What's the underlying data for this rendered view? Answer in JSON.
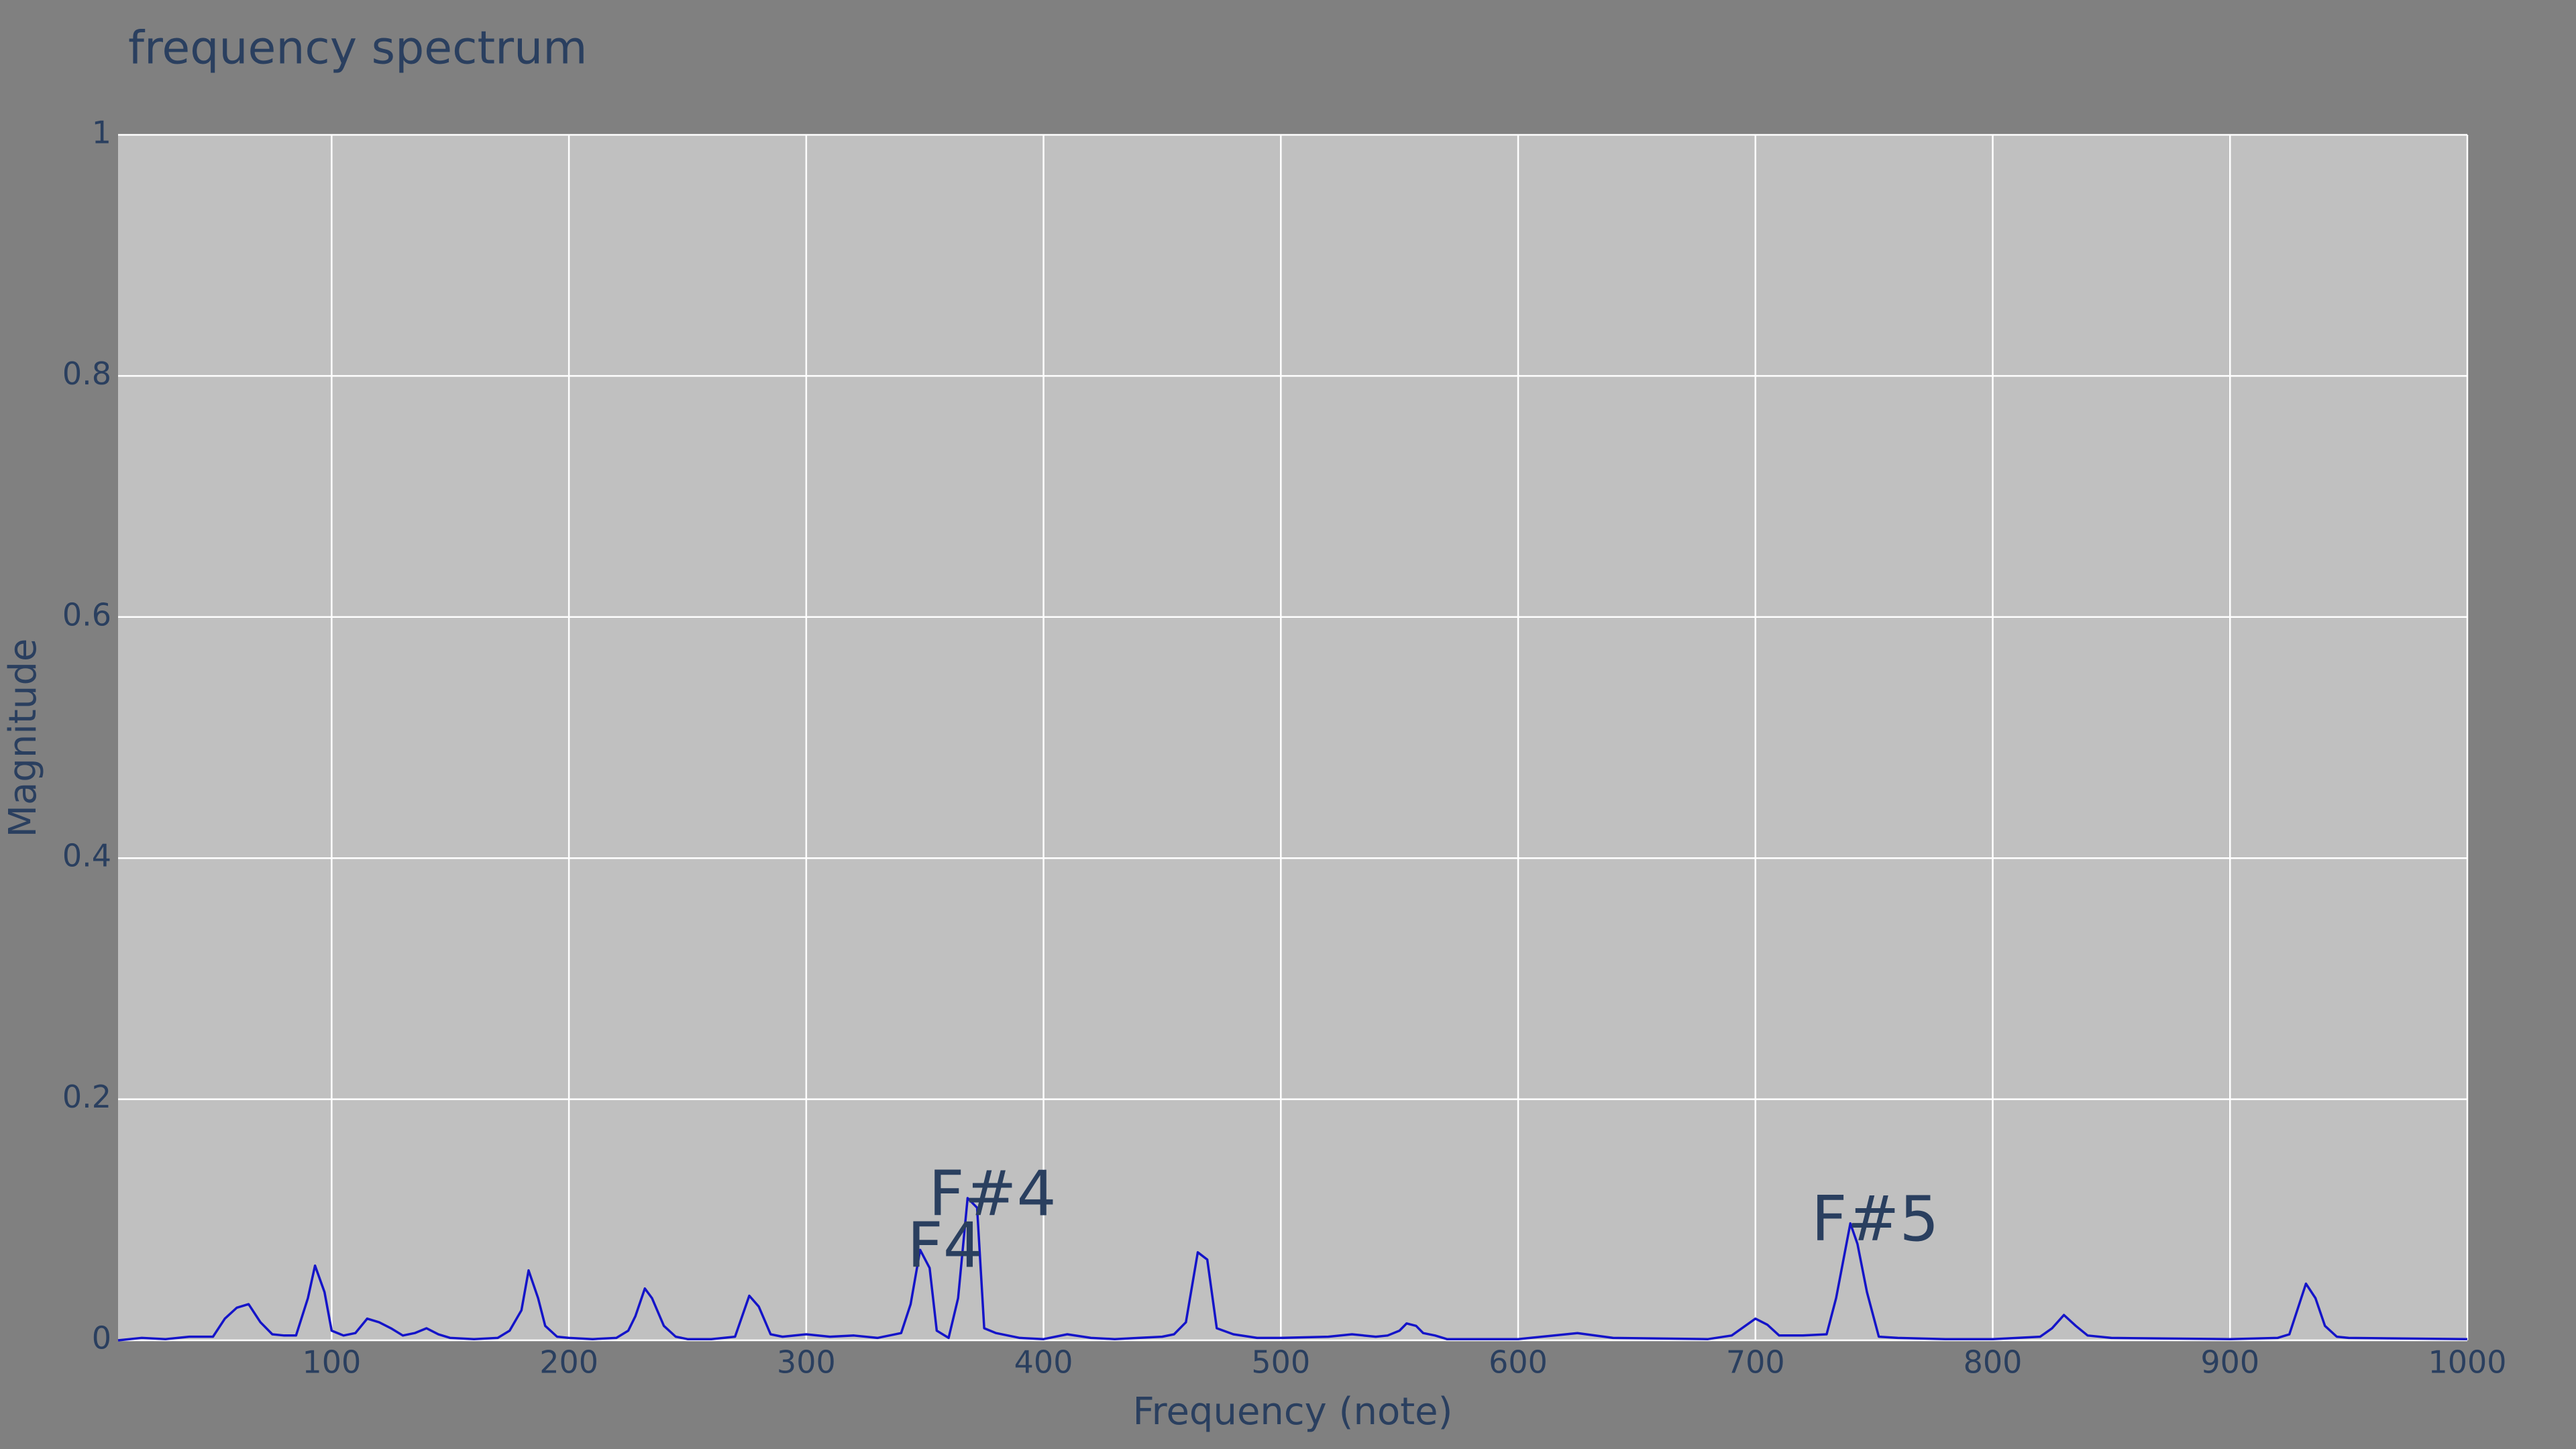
{
  "chart_data": {
    "type": "line",
    "title": "frequency spectrum",
    "x_label": "Frequency (note)",
    "y_label": "Magnitude",
    "x": [
      10,
      20,
      30,
      40,
      50,
      55,
      60,
      65,
      70,
      75,
      80,
      85,
      90,
      93,
      97,
      100,
      105,
      110,
      115,
      120,
      125,
      130,
      135,
      140,
      145,
      150,
      160,
      170,
      175,
      180,
      183,
      187,
      190,
      195,
      200,
      210,
      220,
      225,
      228,
      232,
      235,
      240,
      245,
      250,
      260,
      270,
      273,
      276,
      280,
      285,
      290,
      300,
      310,
      320,
      330,
      340,
      344,
      348,
      352,
      355,
      360,
      364,
      368,
      372,
      375,
      380,
      390,
      400,
      410,
      420,
      430,
      440,
      450,
      455,
      460,
      465,
      469,
      473,
      480,
      490,
      500,
      520,
      530,
      540,
      545,
      550,
      553,
      557,
      560,
      565,
      570,
      600,
      625,
      640,
      680,
      690,
      700,
      705,
      710,
      720,
      730,
      734,
      740,
      743,
      747,
      752,
      760,
      780,
      800,
      820,
      825,
      830,
      835,
      840,
      850,
      900,
      920,
      925,
      930,
      932,
      936,
      940,
      945,
      950,
      1000
    ],
    "series": [
      {
        "color": "#1414c8",
        "values": [
          0,
          0.002,
          0.001,
          0.003,
          0.003,
          0.018,
          0.027,
          0.03,
          0.015,
          0.005,
          0.004,
          0.004,
          0.035,
          0.062,
          0.04,
          0.008,
          0.004,
          0.006,
          0.018,
          0.015,
          0.01,
          0.004,
          0.006,
          0.01,
          0.005,
          0.002,
          0.001,
          0.002,
          0.008,
          0.025,
          0.058,
          0.035,
          0.012,
          0.003,
          0.002,
          0.001,
          0.002,
          0.008,
          0.02,
          0.043,
          0.035,
          0.012,
          0.003,
          0.001,
          0.001,
          0.003,
          0.02,
          0.037,
          0.028,
          0.005,
          0.003,
          0.005,
          0.003,
          0.004,
          0.002,
          0.006,
          0.03,
          0.075,
          0.06,
          0.008,
          0.002,
          0.035,
          0.118,
          0.11,
          0.01,
          0.006,
          0.002,
          0.001,
          0.005,
          0.002,
          0.001,
          0.002,
          0.003,
          0.005,
          0.015,
          0.073,
          0.067,
          0.01,
          0.005,
          0.002,
          0.002,
          0.003,
          0.005,
          0.003,
          0.004,
          0.008,
          0.014,
          0.012,
          0.006,
          0.004,
          0.001,
          0.001,
          0.006,
          0.002,
          0.001,
          0.004,
          0.018,
          0.013,
          0.004,
          0.004,
          0.005,
          0.035,
          0.097,
          0.08,
          0.04,
          0.003,
          0.002,
          0.001,
          0.001,
          0.003,
          0.01,
          0.021,
          0.012,
          0.004,
          0.002,
          0.001,
          0.002,
          0.005,
          0.035,
          0.047,
          0.035,
          0.012,
          0.003,
          0.002,
          0.001
        ]
      }
    ],
    "annotations": [
      {
        "x": 348,
        "y": 0.075,
        "text": "F4"
      },
      {
        "x": 368,
        "y": 0.118,
        "text": "F#4"
      },
      {
        "x": 740,
        "y": 0.097,
        "text": "F#5"
      }
    ],
    "xlim": [
      10,
      1000
    ],
    "xticks": [
      100,
      200,
      300,
      400,
      500,
      600,
      700,
      800,
      900,
      1000
    ],
    "ylim": [
      0,
      1
    ],
    "yticks": [
      0,
      0.2,
      0.4,
      0.6,
      0.8,
      1
    ],
    "grid": true
  }
}
